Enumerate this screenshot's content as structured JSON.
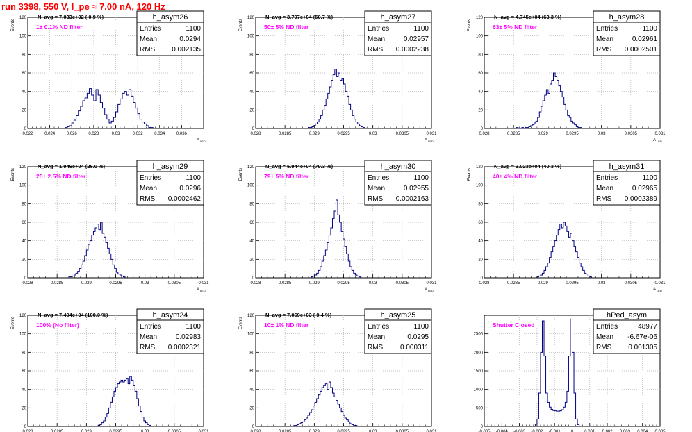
{
  "page": {
    "run_title": "run 3398,   550 V, I_pe ≈ 7.00 nA, 120 Hz"
  },
  "chart_data": [
    {
      "type": "histogram",
      "name": "h_asym26",
      "navg": "N_avg = 7.033e+02 ( 0.9 %)",
      "filter": "1± 0.1% ND filter",
      "stats": {
        "entries": "1100",
        "mean": "0.0294",
        "rms": "0.002135"
      },
      "xlim": [
        0.022,
        0.038
      ],
      "ylim": [
        0,
        120
      ],
      "xticks": [
        "0.022",
        "0.024",
        "0.026",
        "0.028",
        "0.03",
        "0.032",
        "0.034",
        "0.036"
      ],
      "xtick_values": [
        0.022,
        0.024,
        0.026,
        0.028,
        0.03,
        0.032,
        0.034,
        0.036
      ],
      "yticks": [
        0,
        20,
        40,
        60,
        80,
        100,
        120
      ],
      "xlabel": "A",
      "xlabel_sub": "LED",
      "ylabel": "Events",
      "bin_start": 0.0254,
      "bin_width": 0.0002,
      "counts": [
        1,
        2,
        3,
        6,
        9,
        14,
        19,
        24,
        30,
        33,
        38,
        43,
        36,
        30,
        42,
        36,
        28,
        22,
        15,
        10,
        6,
        8,
        12,
        18,
        26,
        32,
        38,
        40,
        36,
        42,
        35,
        28,
        22,
        16,
        10,
        7,
        5,
        3,
        1,
        1
      ]
    },
    {
      "type": "histogram",
      "name": "h_asym27",
      "navg": "N_avg = 3.797e+04 (50.7 %)",
      "filter": "50± 5% ND filter",
      "stats": {
        "entries": "1100",
        "mean": "0.02957",
        "rms": "0.0002238"
      },
      "xlim": [
        0.028,
        0.031
      ],
      "ylim": [
        0,
        120
      ],
      "xticks": [
        "0.028",
        "0.0285",
        "0.029",
        "0.0295",
        "0.03",
        "0.0305",
        "0.031"
      ],
      "xtick_values": [
        0.028,
        0.0285,
        0.029,
        0.0295,
        0.03,
        0.0305,
        0.031
      ],
      "yticks": [
        0,
        20,
        40,
        60,
        80,
        100,
        120
      ],
      "xlabel": "A",
      "xlabel_sub": "LED",
      "ylabel": "Events",
      "bin_start": 0.0289,
      "bin_width": 3e-05,
      "counts": [
        1,
        1,
        2,
        3,
        5,
        7,
        10,
        14,
        20,
        25,
        32,
        38,
        45,
        52,
        58,
        64,
        56,
        60,
        52,
        54,
        48,
        40,
        35,
        26,
        20,
        14,
        10,
        7,
        5,
        3,
        2,
        1
      ]
    },
    {
      "type": "histogram",
      "name": "h_asym28",
      "navg": "N_avg = 4.745e+04 (63.3 %)",
      "filter": "63± 5% ND filter",
      "stats": {
        "entries": "1100",
        "mean": "0.02961",
        "rms": "0.0002501"
      },
      "xlim": [
        0.028,
        0.031
      ],
      "ylim": [
        0,
        120
      ],
      "xticks": [
        "0.028",
        "0.0285",
        "0.029",
        "0.0295",
        "0.03",
        "0.0305",
        "0.031"
      ],
      "xtick_values": [
        0.028,
        0.0285,
        0.029,
        0.0295,
        0.03,
        0.0305,
        0.031
      ],
      "yticks": [
        0,
        20,
        40,
        60,
        80,
        100,
        120
      ],
      "xlabel": "A",
      "xlabel_sub": "LED",
      "ylabel": "Events",
      "bin_start": 0.02855,
      "bin_width": 3e-05,
      "counts": [
        1,
        0,
        0,
        1,
        0,
        1,
        1,
        2,
        3,
        4,
        6,
        8,
        12,
        18,
        24,
        30,
        36,
        42,
        38,
        48,
        52,
        60,
        56,
        52,
        46,
        40,
        34,
        26,
        20,
        14,
        12,
        8,
        6,
        4,
        2,
        1,
        1
      ]
    },
    {
      "type": "histogram",
      "name": "h_asym29",
      "navg": "N_avg = 1.946e+04 (26.0 %)",
      "filter": "25± 2.5% ND filter",
      "stats": {
        "entries": "1100",
        "mean": "0.0296",
        "rms": "0.0002462"
      },
      "xlim": [
        0.028,
        0.031
      ],
      "ylim": [
        0,
        120
      ],
      "xticks": [
        "0.028",
        "0.0285",
        "0.029",
        "0.0295",
        "0.03",
        "0.0305",
        "0.031"
      ],
      "xtick_values": [
        0.028,
        0.0285,
        0.029,
        0.0295,
        0.03,
        0.0305,
        0.031
      ],
      "yticks": [
        0,
        20,
        40,
        60,
        80,
        100,
        120
      ],
      "xlabel": "A",
      "xlabel_sub": "LED",
      "ylabel": "Events",
      "bin_start": 0.0287,
      "bin_width": 3e-05,
      "counts": [
        1,
        1,
        2,
        3,
        5,
        7,
        10,
        14,
        18,
        24,
        30,
        36,
        40,
        46,
        50,
        54,
        58,
        52,
        60,
        48,
        44,
        38,
        32,
        26,
        20,
        14,
        10,
        6,
        4,
        3,
        2,
        1
      ]
    },
    {
      "type": "histogram",
      "name": "h_asym30",
      "navg": "N_avg = 5.944e+04 (79.3 %)",
      "filter": "79± 5% ND filter",
      "stats": {
        "entries": "1100",
        "mean": "0.02955",
        "rms": "0.0002163"
      },
      "xlim": [
        0.028,
        0.031
      ],
      "ylim": [
        0,
        120
      ],
      "xticks": [
        "0.028",
        "0.0285",
        "0.029",
        "0.0295",
        "0.03",
        "0.0305",
        "0.031"
      ],
      "xtick_values": [
        0.028,
        0.0285,
        0.029,
        0.0295,
        0.03,
        0.0305,
        0.031
      ],
      "yticks": [
        0,
        20,
        40,
        60,
        80,
        100,
        120
      ],
      "xlabel": "A",
      "xlabel_sub": "LED",
      "ylabel": "Events",
      "bin_start": 0.02895,
      "bin_width": 3e-05,
      "counts": [
        1,
        2,
        3,
        5,
        8,
        12,
        18,
        24,
        30,
        38,
        46,
        54,
        64,
        72,
        84,
        68,
        60,
        50,
        42,
        34,
        26,
        18,
        12,
        8,
        5,
        3,
        2,
        1
      ]
    },
    {
      "type": "histogram",
      "name": "h_asym31",
      "navg": "N_avg = 3.023e+04 (40.3 %)",
      "filter": "40± 4% ND filter",
      "stats": {
        "entries": "1100",
        "mean": "0.02965",
        "rms": "0.0002389"
      },
      "xlim": [
        0.028,
        0.031
      ],
      "ylim": [
        0,
        120
      ],
      "xticks": [
        "0.028",
        "0.0285",
        "0.029",
        "0.0295",
        "0.03",
        "0.0305",
        "0.031"
      ],
      "xtick_values": [
        0.028,
        0.0285,
        0.029,
        0.0295,
        0.03,
        0.0305,
        0.031
      ],
      "yticks": [
        0,
        20,
        40,
        60,
        80,
        100,
        120
      ],
      "xlabel": "A",
      "xlabel_sub": "LED",
      "ylabel": "Events",
      "bin_start": 0.0289,
      "bin_width": 3e-05,
      "counts": [
        1,
        2,
        3,
        5,
        8,
        12,
        16,
        22,
        28,
        34,
        40,
        46,
        52,
        58,
        54,
        60,
        56,
        50,
        44,
        48,
        40,
        34,
        28,
        22,
        16,
        12,
        8,
        5,
        4,
        2,
        1
      ]
    },
    {
      "type": "histogram",
      "name": "h_asym24",
      "navg": "N_avg = 7.494e+04 (100.0 %)",
      "filter": "100% (No filter)",
      "stats": {
        "entries": "1100",
        "mean": "0.02983",
        "rms": "0.0002321"
      },
      "xlim": [
        0.028,
        0.031
      ],
      "ylim": [
        0,
        120
      ],
      "xticks": [
        "0.028",
        "0.0285",
        "0.029",
        "0.0295",
        "0.03",
        "0.0305",
        "0.031"
      ],
      "xtick_values": [
        0.028,
        0.0285,
        0.029,
        0.0295,
        0.03,
        0.0305,
        0.031
      ],
      "yticks": [
        0,
        20,
        40,
        60,
        80,
        100,
        120
      ],
      "xlabel": "A",
      "xlabel_sub": "LED",
      "ylabel": "Events",
      "bin_start": 0.0292,
      "bin_width": 3e-05,
      "counts": [
        1,
        2,
        4,
        6,
        10,
        14,
        20,
        26,
        32,
        38,
        42,
        46,
        48,
        50,
        48,
        50,
        52,
        46,
        54,
        50,
        44,
        38,
        30,
        22,
        16,
        10,
        6,
        4,
        2,
        1
      ]
    },
    {
      "type": "histogram",
      "name": "h_asym25",
      "navg": "N_avg = 7.069e+03 ( 9.4 %)",
      "filter": "10± 1% ND filter",
      "stats": {
        "entries": "1100",
        "mean": "0.0295",
        "rms": "0.000311"
      },
      "xlim": [
        0.028,
        0.031
      ],
      "ylim": [
        0,
        120
      ],
      "xticks": [
        "0.028",
        "0.0285",
        "0.029",
        "0.0295",
        "0.03",
        "0.0305",
        "0.031"
      ],
      "xtick_values": [
        0.028,
        0.0285,
        0.029,
        0.0295,
        0.03,
        0.0305,
        0.031
      ],
      "yticks": [
        0,
        20,
        40,
        60,
        80,
        100,
        120
      ],
      "xlabel": "A",
      "xlabel_sub": "LED",
      "ylabel": "Events",
      "bin_start": 0.02865,
      "bin_width": 3e-05,
      "counts": [
        1,
        1,
        2,
        3,
        4,
        5,
        7,
        9,
        12,
        15,
        18,
        22,
        26,
        30,
        34,
        38,
        42,
        44,
        46,
        40,
        48,
        42,
        36,
        32,
        28,
        24,
        20,
        16,
        12,
        9,
        7,
        5,
        3,
        2,
        1,
        1
      ]
    },
    {
      "type": "histogram",
      "name": "hPed_asym",
      "navg": "",
      "filter": "Shutter Closed",
      "stats": {
        "entries": "48977",
        "mean": "-6.67e-06",
        "rms": "0.001305"
      },
      "xlim": [
        -0.005,
        0.005
      ],
      "ylim": [
        0,
        3000
      ],
      "xticks": [
        "-0.005",
        "-0.004",
        "-0.003",
        "-0.002",
        "-0.001",
        "0",
        "0.001",
        "0.002",
        "0.003",
        "0.004",
        "0.005"
      ],
      "xtick_values": [
        -0.005,
        -0.004,
        -0.003,
        -0.002,
        -0.001,
        0,
        0.001,
        0.002,
        0.003,
        0.004,
        0.005
      ],
      "yticks": [
        0,
        500,
        1000,
        1500,
        2000,
        2500
      ],
      "xlabel": "A",
      "xlabel_sub": "LED",
      "ylabel": "",
      "bin_start": -0.0021,
      "bin_width": 0.0001,
      "counts": [
        60,
        200,
        900,
        2000,
        2850,
        1900,
        900,
        650,
        520,
        460,
        430,
        420,
        410,
        410,
        420,
        450,
        520,
        650,
        950,
        1900,
        2900,
        2000,
        900,
        200,
        50
      ]
    }
  ]
}
